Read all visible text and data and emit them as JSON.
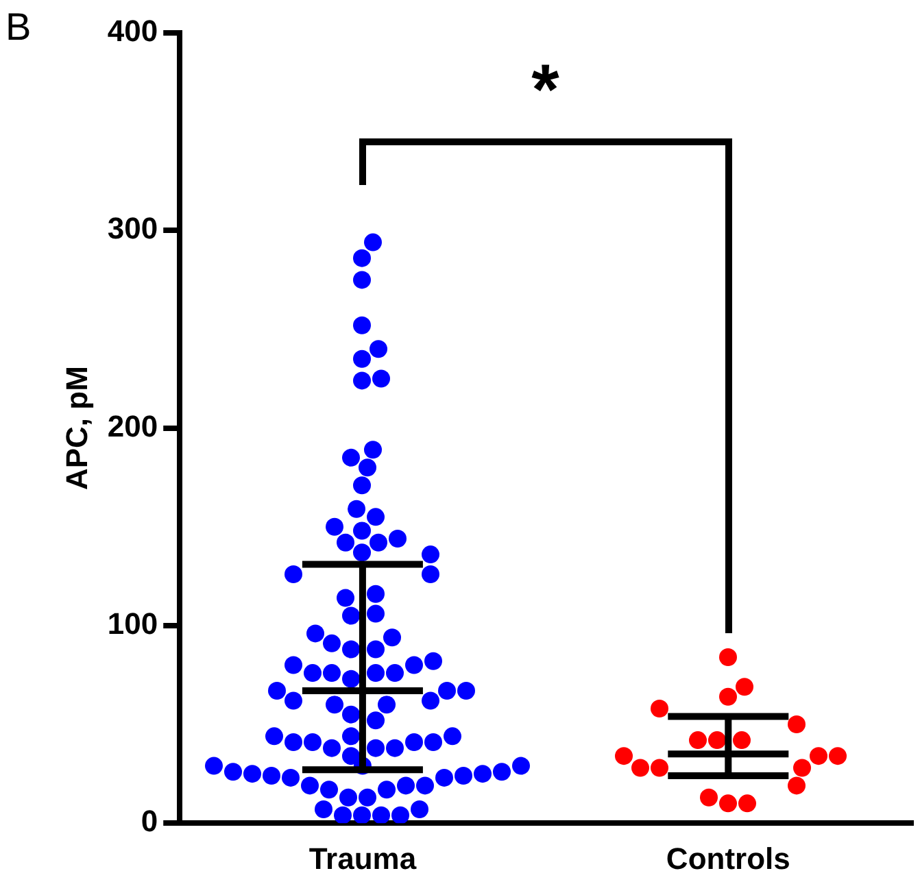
{
  "chart_data": {
    "type": "scatter",
    "title": "B",
    "ylabel": "APC, pM",
    "categories": [
      "Trauma",
      "Controls"
    ],
    "ylim": [
      0,
      400
    ],
    "yticks": [
      0,
      100,
      200,
      300,
      400
    ],
    "grid": false,
    "legend": false,
    "marker": "circle",
    "annotations": [
      "*"
    ],
    "series": [
      {
        "color": "#0000ff",
        "x": [
          "Trauma",
          "Trauma",
          "Trauma",
          "Trauma",
          "Trauma",
          "Trauma",
          "Trauma",
          "Trauma",
          "Trauma",
          "Trauma",
          "Trauma",
          "Trauma",
          "Trauma",
          "Trauma",
          "Trauma",
          "Trauma",
          "Trauma",
          "Trauma",
          "Trauma",
          "Trauma",
          "Trauma",
          "Trauma",
          "Trauma",
          "Trauma",
          "Trauma",
          "Trauma",
          "Trauma",
          "Trauma",
          "Trauma",
          "Trauma",
          "Trauma",
          "Trauma",
          "Trauma",
          "Trauma",
          "Trauma",
          "Trauma",
          "Trauma",
          "Trauma",
          "Trauma",
          "Trauma",
          "Trauma",
          "Trauma",
          "Trauma",
          "Trauma",
          "Trauma",
          "Trauma",
          "Trauma",
          "Trauma",
          "Trauma",
          "Trauma",
          "Trauma",
          "Trauma",
          "Trauma",
          "Trauma",
          "Trauma",
          "Trauma",
          "Trauma",
          "Trauma",
          "Trauma",
          "Trauma",
          "Trauma",
          "Trauma",
          "Trauma",
          "Trauma",
          "Trauma",
          "Trauma",
          "Trauma",
          "Trauma",
          "Trauma",
          "Trauma",
          "Trauma",
          "Trauma",
          "Trauma",
          "Trauma",
          "Trauma",
          "Trauma",
          "Trauma",
          "Trauma",
          "Trauma",
          "Trauma",
          "Trauma",
          "Trauma",
          "Trauma",
          "Trauma"
        ],
        "values": [
          294,
          286,
          275,
          252,
          240,
          235,
          225,
          224,
          189,
          185,
          180,
          171,
          159,
          155,
          150,
          148,
          144,
          142,
          142,
          137,
          136,
          126,
          126,
          116,
          114,
          106,
          105,
          96,
          94,
          91,
          88,
          88,
          82,
          80,
          80,
          76,
          76,
          76,
          76,
          73,
          67,
          67,
          67,
          62,
          62,
          60,
          60,
          55,
          52,
          44,
          44,
          44,
          41,
          41,
          41,
          41,
          38,
          38,
          38,
          34,
          29,
          29,
          29,
          26,
          26,
          25,
          25,
          24,
          24,
          23,
          23,
          19,
          19,
          19,
          17,
          17,
          13,
          13,
          7,
          7,
          4,
          4,
          4,
          4
        ]
      },
      {
        "color": "#ff0000",
        "x": [
          "Controls",
          "Controls",
          "Controls",
          "Controls",
          "Controls",
          "Controls",
          "Controls",
          "Controls",
          "Controls",
          "Controls",
          "Controls",
          "Controls",
          "Controls",
          "Controls",
          "Controls",
          "Controls",
          "Controls",
          "Controls"
        ],
        "values": [
          84,
          69,
          64,
          58,
          50,
          42,
          42,
          42,
          34,
          34,
          34,
          28,
          28,
          28,
          19,
          13,
          10,
          10
        ]
      },
      {
        "type": "box",
        "color": "#000000",
        "boxes": [
          {
            "low": 27,
            "q1": 27,
            "median": 67,
            "q3": 131,
            "high": 131
          },
          {
            "low": 24,
            "q1": 24,
            "median": 35,
            "q3": 54,
            "high": 54
          }
        ]
      }
    ]
  }
}
